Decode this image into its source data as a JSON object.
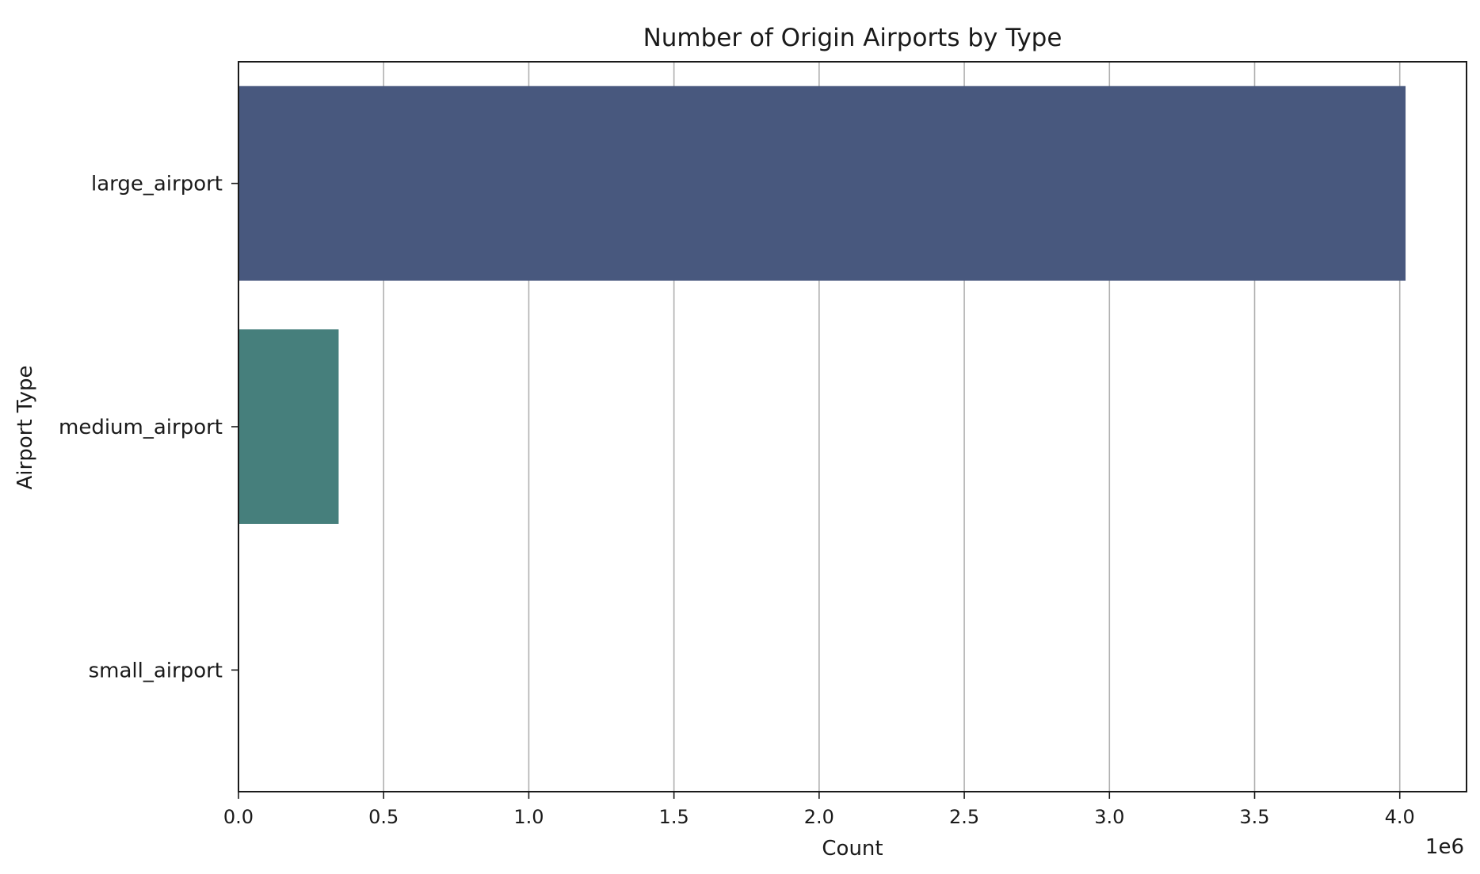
{
  "chart_data": {
    "type": "bar",
    "orientation": "horizontal",
    "title": "Number of Origin Airports by Type",
    "xlabel": "Count",
    "ylabel": "Airport Type",
    "x_offset_label": "1e6",
    "categories": [
      "large_airport",
      "medium_airport",
      "small_airport"
    ],
    "values": [
      4020000,
      345000,
      0
    ],
    "colors": [
      "#48587e",
      "#467f7c",
      "#4ea37a"
    ],
    "xlim": [
      0,
      4230000
    ],
    "xticks": [
      0,
      500000,
      1000000,
      1500000,
      2000000,
      2500000,
      3000000,
      3500000,
      4000000
    ],
    "xtick_labels": [
      "0.0",
      "0.5",
      "1.0",
      "1.5",
      "2.0",
      "2.5",
      "3.0",
      "3.5",
      "4.0"
    ],
    "grid": "x"
  }
}
